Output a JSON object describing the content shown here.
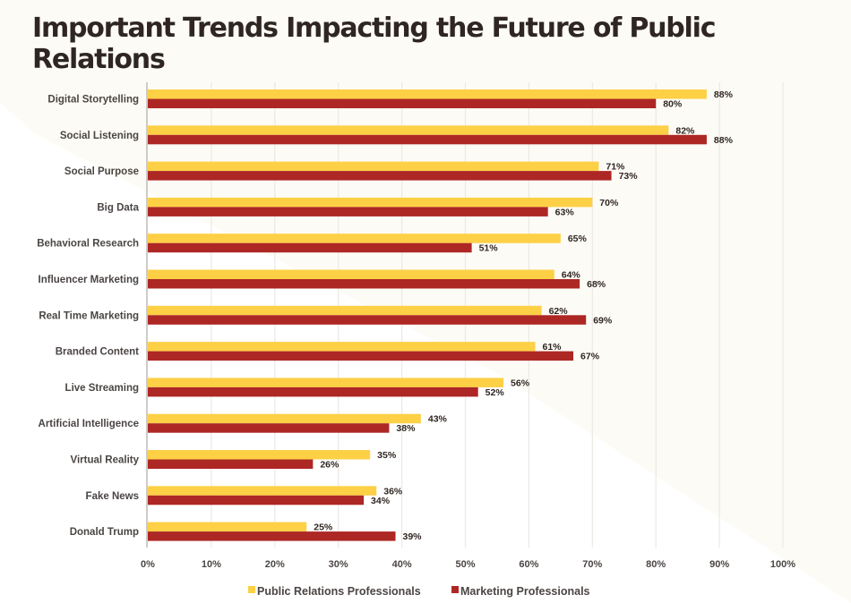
{
  "chart_data": {
    "type": "bar",
    "orientation": "horizontal",
    "title": "Important Trends Impacting the Future of Public Relations",
    "xlabel": "",
    "ylabel": "",
    "xlim": [
      0,
      100
    ],
    "x_tick_labels": [
      "0%",
      "10%",
      "20%",
      "30%",
      "40%",
      "50%",
      "60%",
      "70%",
      "80%",
      "90%",
      "100%"
    ],
    "grid": "vertical",
    "legend_position": "bottom",
    "categories": [
      "Digital Storytelling",
      "Social Listening",
      "Social Purpose",
      "Big Data",
      "Behavioral Research",
      "Influencer Marketing",
      "Real Time Marketing",
      "Branded Content",
      "Live Streaming",
      "Artificial Intelligence",
      "Virtual Reality",
      "Fake News",
      "Donald Trump"
    ],
    "series": [
      {
        "name": "Public Relations Professionals",
        "color": "#fdd046",
        "values": [
          88,
          82,
          71,
          70,
          65,
          64,
          62,
          61,
          56,
          43,
          35,
          36,
          25
        ]
      },
      {
        "name": "Marketing Professionals",
        "color": "#ad2725",
        "values": [
          80,
          88,
          73,
          63,
          51,
          68,
          69,
          67,
          52,
          38,
          26,
          34,
          39
        ]
      }
    ],
    "value_label_suffix": "%"
  },
  "colors": {
    "background": "#fdfbf5",
    "title_text": "#2f2622",
    "grid": "#ece9e2",
    "axis": "#cfcbc6"
  }
}
